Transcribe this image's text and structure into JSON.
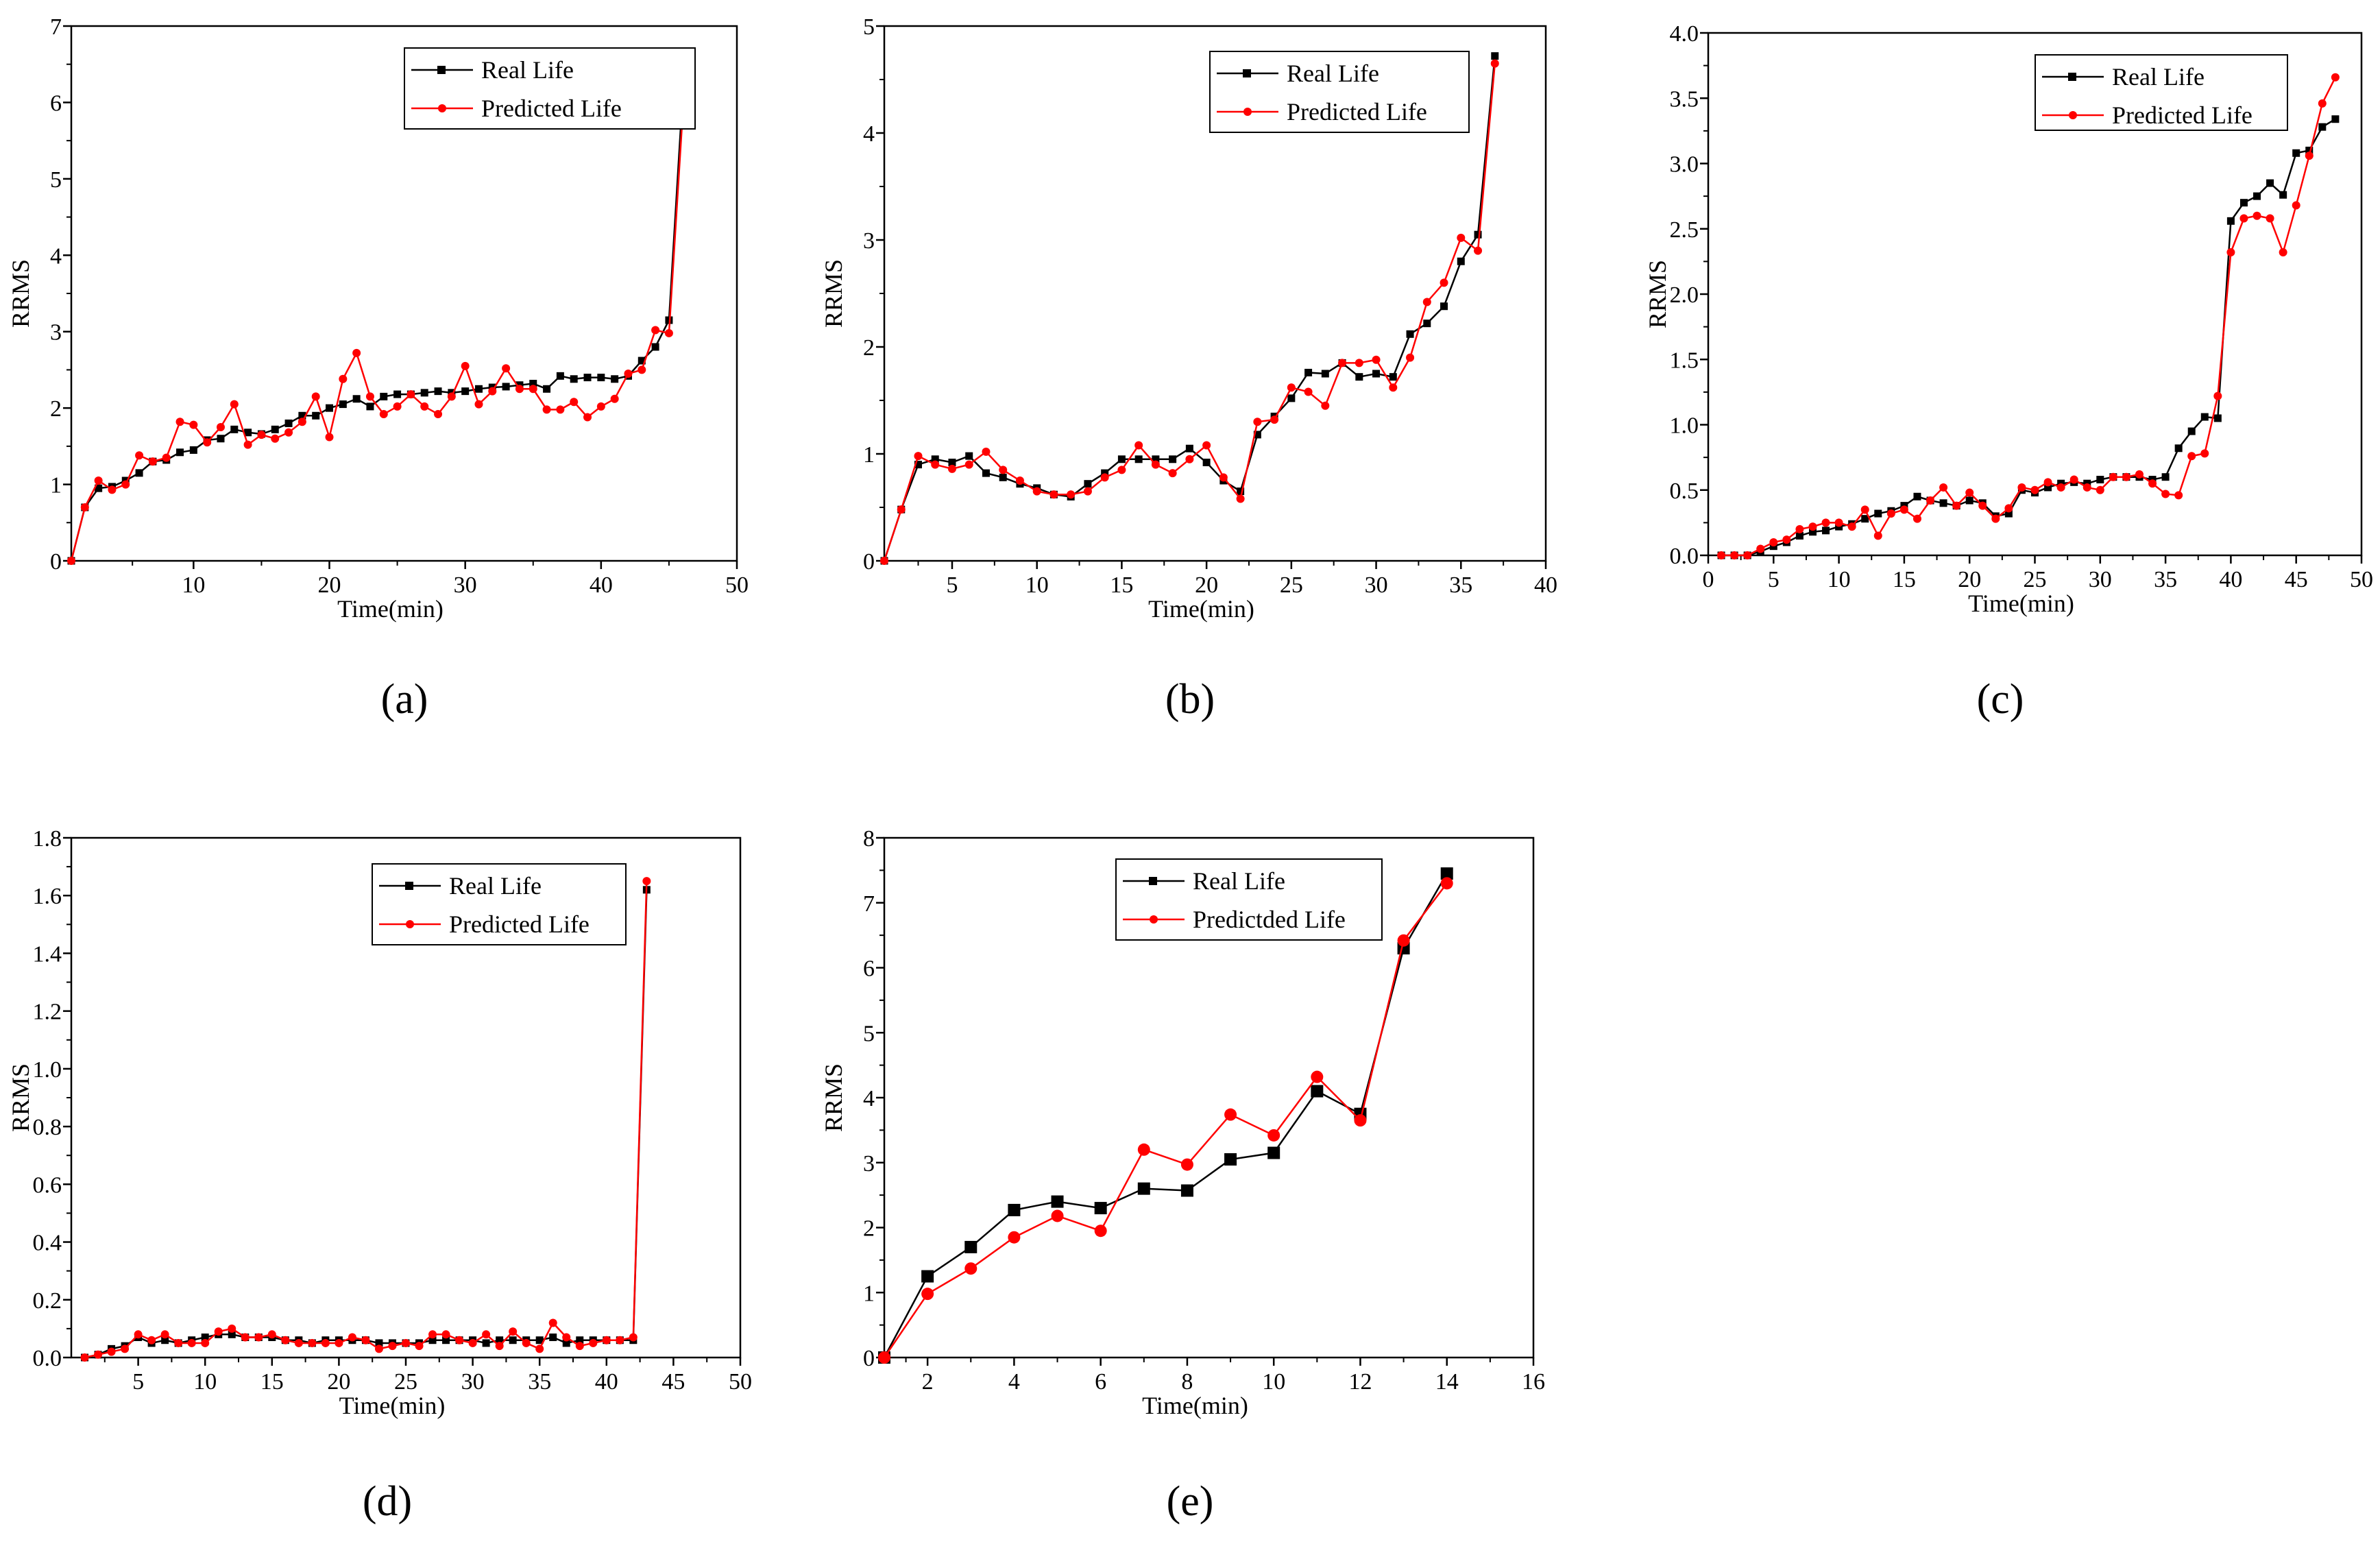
{
  "colors": {
    "real": "#000000",
    "predicted": "#ff0000",
    "axis": "#000000"
  },
  "chart_data": [
    {
      "type": "line",
      "panel_label": "(a)",
      "xlabel": "Time(min)",
      "ylabel": "RRMS",
      "xlim": [
        1,
        50
      ],
      "ylim": [
        0,
        7
      ],
      "xticks": [
        10,
        20,
        30,
        40,
        50
      ],
      "yticks": [
        0,
        1,
        2,
        3,
        4,
        5,
        6,
        7
      ],
      "ytick_decimals": 0,
      "legend_position": "top-right",
      "series": [
        {
          "name": "Real Life",
          "color": "#000000",
          "marker": "square",
          "x": [
            1,
            2,
            3,
            4,
            5,
            6,
            7,
            8,
            9,
            10,
            11,
            12,
            13,
            14,
            15,
            16,
            17,
            18,
            19,
            20,
            21,
            22,
            23,
            24,
            25,
            26,
            27,
            28,
            29,
            30,
            31,
            32,
            33,
            34,
            35,
            36,
            37,
            38,
            39,
            40,
            41,
            42,
            43,
            44,
            45,
            46
          ],
          "values": [
            0,
            0.7,
            0.95,
            0.97,
            1.05,
            1.15,
            1.3,
            1.32,
            1.42,
            1.45,
            1.58,
            1.6,
            1.72,
            1.68,
            1.66,
            1.72,
            1.8,
            1.9,
            1.9,
            2.0,
            2.05,
            2.12,
            2.02,
            2.15,
            2.18,
            2.18,
            2.2,
            2.22,
            2.2,
            2.22,
            2.25,
            2.27,
            2.28,
            2.3,
            2.32,
            2.25,
            2.42,
            2.38,
            2.4,
            2.4,
            2.38,
            2.42,
            2.62,
            2.8,
            3.15,
            6.07
          ]
        },
        {
          "name": "Predicted Life",
          "color": "#ff0000",
          "marker": "circle",
          "x": [
            1,
            2,
            3,
            4,
            5,
            6,
            7,
            8,
            9,
            10,
            11,
            12,
            13,
            14,
            15,
            16,
            17,
            18,
            19,
            20,
            21,
            22,
            23,
            24,
            25,
            26,
            27,
            28,
            29,
            30,
            31,
            32,
            33,
            34,
            35,
            36,
            37,
            38,
            39,
            40,
            41,
            42,
            43,
            44,
            45,
            46
          ],
          "values": [
            0,
            0.7,
            1.05,
            0.93,
            1.0,
            1.38,
            1.3,
            1.35,
            1.82,
            1.78,
            1.55,
            1.75,
            2.05,
            1.52,
            1.65,
            1.6,
            1.68,
            1.82,
            2.15,
            1.62,
            2.38,
            2.72,
            2.15,
            1.92,
            2.02,
            2.18,
            2.02,
            1.92,
            2.15,
            2.55,
            2.05,
            2.22,
            2.52,
            2.25,
            2.25,
            1.98,
            1.98,
            2.08,
            1.88,
            2.02,
            2.12,
            2.45,
            2.5,
            3.02,
            2.98,
            5.82
          ]
        }
      ]
    },
    {
      "type": "line",
      "panel_label": "(b)",
      "xlabel": "Time(min)",
      "ylabel": "RRMS",
      "xlim": [
        1,
        40
      ],
      "ylim": [
        0,
        5
      ],
      "xticks": [
        5,
        10,
        15,
        20,
        25,
        30,
        35,
        40
      ],
      "yticks": [
        0,
        1,
        2,
        3,
        4,
        5
      ],
      "ytick_decimals": 0,
      "legend_position": "top-right",
      "series": [
        {
          "name": "Real Life",
          "color": "#000000",
          "marker": "square",
          "x": [
            1,
            2,
            3,
            4,
            5,
            6,
            7,
            8,
            9,
            10,
            11,
            12,
            13,
            14,
            15,
            16,
            17,
            18,
            19,
            20,
            21,
            22,
            23,
            24,
            25,
            26,
            27,
            28,
            29,
            30,
            31,
            32,
            33,
            34,
            35,
            36,
            37
          ],
          "values": [
            0,
            0.48,
            0.9,
            0.95,
            0.92,
            0.98,
            0.82,
            0.78,
            0.72,
            0.68,
            0.62,
            0.6,
            0.72,
            0.82,
            0.95,
            0.95,
            0.95,
            0.95,
            1.05,
            0.92,
            0.75,
            0.65,
            1.18,
            1.35,
            1.52,
            1.76,
            1.75,
            1.85,
            1.72,
            1.75,
            1.72,
            2.12,
            2.22,
            2.38,
            2.8,
            3.05,
            4.72
          ]
        },
        {
          "name": "Predicted Life",
          "color": "#ff0000",
          "marker": "circle",
          "x": [
            1,
            2,
            3,
            4,
            5,
            6,
            7,
            8,
            9,
            10,
            11,
            12,
            13,
            14,
            15,
            16,
            17,
            18,
            19,
            20,
            21,
            22,
            23,
            24,
            25,
            26,
            27,
            28,
            29,
            30,
            31,
            32,
            33,
            34,
            35,
            36,
            37
          ],
          "values": [
            0,
            0.48,
            0.98,
            0.9,
            0.86,
            0.9,
            1.02,
            0.85,
            0.75,
            0.65,
            0.62,
            0.62,
            0.65,
            0.78,
            0.85,
            1.08,
            0.9,
            0.82,
            0.95,
            1.08,
            0.78,
            0.58,
            1.3,
            1.32,
            1.62,
            1.58,
            1.45,
            1.85,
            1.85,
            1.88,
            1.62,
            1.9,
            2.42,
            2.6,
            3.02,
            2.9,
            4.65
          ]
        }
      ]
    },
    {
      "type": "line",
      "panel_label": "(c)",
      "xlabel": "Time(min)",
      "ylabel": "RRMS",
      "xlim": [
        0,
        50
      ],
      "ylim": [
        0,
        4
      ],
      "xticks": [
        0,
        5,
        10,
        15,
        20,
        25,
        30,
        35,
        40,
        45,
        50
      ],
      "yticks": [
        0.0,
        0.5,
        1.0,
        1.5,
        2.0,
        2.5,
        3.0,
        3.5,
        4.0
      ],
      "ytick_decimals": 1,
      "legend_position": "top-right",
      "series": [
        {
          "name": "Real Life",
          "color": "#000000",
          "marker": "square",
          "x": [
            1,
            2,
            3,
            4,
            5,
            6,
            7,
            8,
            9,
            10,
            11,
            12,
            13,
            14,
            15,
            16,
            17,
            18,
            19,
            20,
            21,
            22,
            23,
            24,
            25,
            26,
            27,
            28,
            29,
            30,
            31,
            32,
            33,
            34,
            35,
            36,
            37,
            38,
            39,
            40,
            41,
            42,
            43,
            44,
            45,
            46,
            47,
            48
          ],
          "values": [
            0,
            0,
            0,
            0.03,
            0.07,
            0.1,
            0.15,
            0.18,
            0.19,
            0.22,
            0.24,
            0.28,
            0.32,
            0.34,
            0.38,
            0.45,
            0.42,
            0.4,
            0.38,
            0.42,
            0.4,
            0.3,
            0.32,
            0.5,
            0.48,
            0.52,
            0.55,
            0.56,
            0.55,
            0.58,
            0.6,
            0.6,
            0.6,
            0.58,
            0.6,
            0.82,
            0.95,
            1.06,
            1.05,
            2.56,
            2.7,
            2.75,
            2.85,
            2.76,
            3.08,
            3.1,
            3.28,
            3.34
          ]
        },
        {
          "name": "Predicted Life",
          "color": "#ff0000",
          "marker": "circle",
          "x": [
            1,
            2,
            3,
            4,
            5,
            6,
            7,
            8,
            9,
            10,
            11,
            12,
            13,
            14,
            15,
            16,
            17,
            18,
            19,
            20,
            21,
            22,
            23,
            24,
            25,
            26,
            27,
            28,
            29,
            30,
            31,
            32,
            33,
            34,
            35,
            36,
            37,
            38,
            39,
            40,
            41,
            42,
            43,
            44,
            45,
            46,
            47,
            48
          ],
          "values": [
            0,
            0,
            0,
            0.05,
            0.1,
            0.12,
            0.2,
            0.22,
            0.25,
            0.25,
            0.22,
            0.35,
            0.15,
            0.32,
            0.35,
            0.28,
            0.42,
            0.52,
            0.38,
            0.48,
            0.38,
            0.28,
            0.36,
            0.52,
            0.5,
            0.56,
            0.52,
            0.58,
            0.52,
            0.5,
            0.6,
            0.6,
            0.62,
            0.55,
            0.47,
            0.46,
            0.76,
            0.78,
            1.22,
            2.32,
            2.58,
            2.6,
            2.58,
            2.32,
            2.68,
            3.06,
            3.46,
            3.66
          ]
        }
      ]
    },
    {
      "type": "line",
      "panel_label": "(d)",
      "xlabel": "Time(min)",
      "ylabel": "RRMS",
      "xlim": [
        0,
        50
      ],
      "ylim": [
        0,
        1.8
      ],
      "xticks": [
        5,
        10,
        15,
        20,
        25,
        30,
        35,
        40,
        45,
        50
      ],
      "yticks": [
        0.0,
        0.2,
        0.4,
        0.6,
        0.8,
        1.0,
        1.2,
        1.4,
        1.6,
        1.8
      ],
      "ytick_decimals": 1,
      "legend_position": "top-right",
      "series": [
        {
          "name": "Real Life",
          "color": "#000000",
          "marker": "square",
          "x": [
            1,
            2,
            3,
            4,
            5,
            6,
            7,
            8,
            9,
            10,
            11,
            12,
            13,
            14,
            15,
            16,
            17,
            18,
            19,
            20,
            21,
            22,
            23,
            24,
            25,
            26,
            27,
            28,
            29,
            30,
            31,
            32,
            33,
            34,
            35,
            36,
            37,
            38,
            39,
            40,
            41,
            42,
            43
          ],
          "values": [
            0,
            0.01,
            0.03,
            0.04,
            0.07,
            0.05,
            0.06,
            0.05,
            0.06,
            0.07,
            0.08,
            0.08,
            0.07,
            0.07,
            0.07,
            0.06,
            0.06,
            0.05,
            0.06,
            0.06,
            0.06,
            0.06,
            0.05,
            0.05,
            0.05,
            0.05,
            0.06,
            0.06,
            0.06,
            0.06,
            0.05,
            0.06,
            0.06,
            0.06,
            0.06,
            0.07,
            0.05,
            0.06,
            0.06,
            0.06,
            0.06,
            0.06,
            1.62
          ]
        },
        {
          "name": "Predicted Life",
          "color": "#ff0000",
          "marker": "circle",
          "x": [
            1,
            2,
            3,
            4,
            5,
            6,
            7,
            8,
            9,
            10,
            11,
            12,
            13,
            14,
            15,
            16,
            17,
            18,
            19,
            20,
            21,
            22,
            23,
            24,
            25,
            26,
            27,
            28,
            29,
            30,
            31,
            32,
            33,
            34,
            35,
            36,
            37,
            38,
            39,
            40,
            41,
            42,
            43
          ],
          "values": [
            0,
            0.01,
            0.02,
            0.03,
            0.08,
            0.06,
            0.08,
            0.05,
            0.05,
            0.05,
            0.09,
            0.1,
            0.07,
            0.07,
            0.08,
            0.06,
            0.05,
            0.05,
            0.05,
            0.05,
            0.07,
            0.06,
            0.03,
            0.04,
            0.05,
            0.04,
            0.08,
            0.08,
            0.06,
            0.05,
            0.08,
            0.04,
            0.09,
            0.05,
            0.03,
            0.12,
            0.07,
            0.04,
            0.05,
            0.06,
            0.06,
            0.07,
            1.65
          ]
        }
      ]
    },
    {
      "type": "line",
      "panel_label": "(e)",
      "xlabel": "Time(min)",
      "ylabel": "RRMS",
      "xlim": [
        1,
        16
      ],
      "ylim": [
        0,
        8
      ],
      "xticks": [
        2,
        4,
        6,
        8,
        10,
        12,
        14,
        16
      ],
      "yticks": [
        0,
        1,
        2,
        3,
        4,
        5,
        6,
        7,
        8
      ],
      "ytick_decimals": 0,
      "legend_position": "top-right",
      "series": [
        {
          "name": "Real Life",
          "color": "#000000",
          "marker": "square",
          "x": [
            1,
            2,
            3,
            4,
            5,
            6,
            7,
            8,
            9,
            10,
            11,
            12,
            13,
            14
          ],
          "values": [
            0,
            1.25,
            1.7,
            2.27,
            2.4,
            2.3,
            2.6,
            2.57,
            3.05,
            3.15,
            4.1,
            3.75,
            6.3,
            7.45
          ]
        },
        {
          "name": "Predictded Life",
          "color": "#ff0000",
          "marker": "circle",
          "x": [
            1,
            2,
            3,
            4,
            5,
            6,
            7,
            8,
            9,
            10,
            11,
            12,
            13,
            14
          ],
          "values": [
            0,
            0.98,
            1.37,
            1.85,
            2.18,
            1.95,
            3.2,
            2.97,
            3.74,
            3.42,
            4.32,
            3.65,
            6.42,
            7.3
          ]
        }
      ]
    }
  ]
}
